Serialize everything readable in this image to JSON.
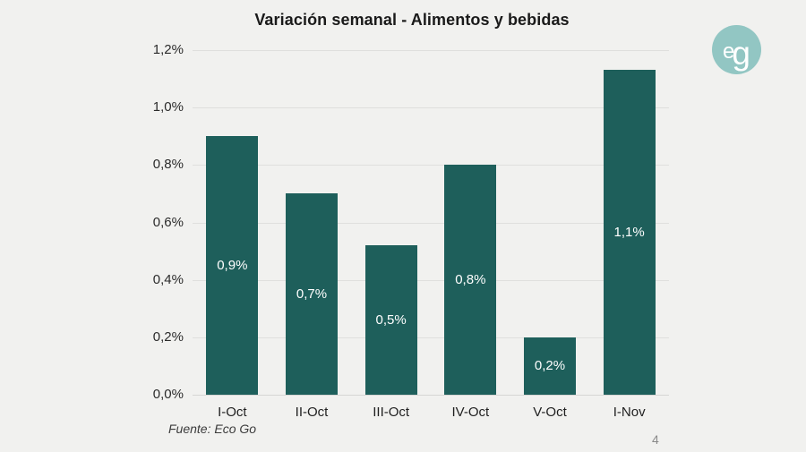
{
  "slide": {
    "footer": {
      "source": "Fuente: Eco Go",
      "page_number": "4"
    },
    "logo": {
      "letter_e": "e",
      "letter_g": "g",
      "circle_color": "#92C6C3",
      "text_color": "#FFFFFF"
    }
  },
  "chart_data": {
    "type": "bar",
    "title": "Variación semanal - Alimentos y bebidas",
    "categories": [
      "I-Oct",
      "II-Oct",
      "III-Oct",
      "IV-Oct",
      "V-Oct",
      "I-Nov"
    ],
    "values": [
      0.9,
      0.7,
      0.52,
      0.8,
      0.2,
      1.13
    ],
    "bar_labels": [
      "0,9%",
      "0,7%",
      "0,5%",
      "0,8%",
      "0,2%",
      "1,1%"
    ],
    "xlabel": "",
    "ylabel": "",
    "ylim": [
      0,
      1.2
    ],
    "yticks": [
      0,
      0.2,
      0.4,
      0.6,
      0.8,
      1.0,
      1.2
    ],
    "ytick_labels": [
      "0,0%",
      "0,2%",
      "0,4%",
      "0,6%",
      "0,8%",
      "1,0%",
      "1,2%"
    ],
    "grid": true,
    "legend": false,
    "bar_color": "#1E5F5B",
    "bar_label_color": "#FFFFFF",
    "background_color": "#F1F1EF"
  }
}
